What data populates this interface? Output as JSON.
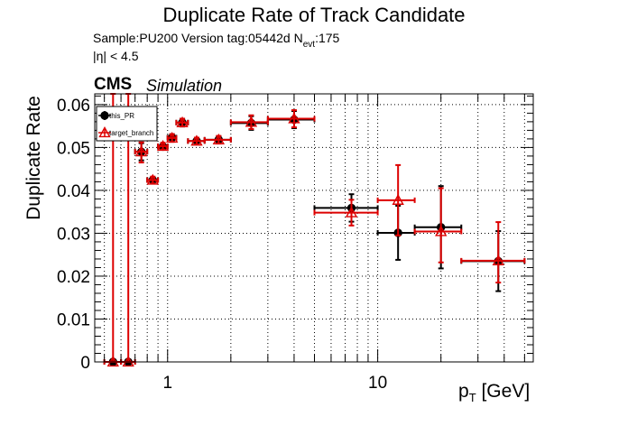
{
  "chart_data": {
    "type": "scatter",
    "title": "Duplicate Rate of Track Candidate",
    "subtitle_sample": "Sample:PU200   Version tag:05442d  N",
    "subtitle_nevt_sub": "evt",
    "subtitle_nevt_value": ":175",
    "eta_label": "|η| < 4.5",
    "cms_label": "CMS",
    "simulation_label": "Simulation",
    "ylabel": "Duplicate Rate",
    "xlabel_main": "p",
    "xlabel_sub": "T",
    "xlabel_unit": " [GeV]",
    "x_scale": "log",
    "xlim": [
      0.45,
      55
    ],
    "ylim": [
      0,
      0.0625
    ],
    "grid": true,
    "legend_position": "top-left",
    "x_tick_labels": [
      {
        "value": 1,
        "label": "1"
      },
      {
        "value": 10,
        "label": "10"
      }
    ],
    "y_tick_labels": [
      {
        "value": 0,
        "label": "0"
      },
      {
        "value": 0.01,
        "label": "0.01"
      },
      {
        "value": 0.02,
        "label": "0.02"
      },
      {
        "value": 0.03,
        "label": "0.03"
      },
      {
        "value": 0.04,
        "label": "0.04"
      },
      {
        "value": 0.05,
        "label": "0.05"
      },
      {
        "value": 0.06,
        "label": "0.06"
      }
    ],
    "series": [
      {
        "name": "this_PR",
        "color": "#000000",
        "marker": "circle",
        "points": [
          {
            "x": 0.55,
            "xlo": 0.5,
            "xhi": 0.6,
            "y": 0.0,
            "ylo": 0.0,
            "yhi": 0.0
          },
          {
            "x": 0.65,
            "xlo": 0.6,
            "xhi": 0.7,
            "y": 0.0,
            "ylo": 0.0,
            "yhi": 0.0
          },
          {
            "x": 0.75,
            "xlo": 0.7,
            "xhi": 0.8,
            "y": 0.049,
            "ylo": 0.047,
            "yhi": 0.051
          },
          {
            "x": 0.85,
            "xlo": 0.8,
            "xhi": 0.9,
            "y": 0.0424,
            "ylo": 0.0418,
            "yhi": 0.043
          },
          {
            "x": 0.95,
            "xlo": 0.9,
            "xhi": 1.0,
            "y": 0.0502,
            "ylo": 0.0495,
            "yhi": 0.0509
          },
          {
            "x": 1.05,
            "xlo": 1.0,
            "xhi": 1.1,
            "y": 0.0523,
            "ylo": 0.0515,
            "yhi": 0.0531
          },
          {
            "x": 1.175,
            "xlo": 1.1,
            "xhi": 1.25,
            "y": 0.0558,
            "ylo": 0.0549,
            "yhi": 0.0567
          },
          {
            "x": 1.375,
            "xlo": 1.25,
            "xhi": 1.5,
            "y": 0.0515,
            "ylo": 0.0508,
            "yhi": 0.0522
          },
          {
            "x": 1.75,
            "xlo": 1.5,
            "xhi": 2.0,
            "y": 0.0518,
            "ylo": 0.051,
            "yhi": 0.0526
          },
          {
            "x": 2.5,
            "xlo": 2.0,
            "xhi": 3.0,
            "y": 0.0557,
            "ylo": 0.0541,
            "yhi": 0.0573
          },
          {
            "x": 4.0,
            "xlo": 3.0,
            "xhi": 5.0,
            "y": 0.0565,
            "ylo": 0.0545,
            "yhi": 0.0585
          },
          {
            "x": 7.5,
            "xlo": 5.0,
            "xhi": 10.0,
            "y": 0.0359,
            "ylo": 0.0327,
            "yhi": 0.0391
          },
          {
            "x": 12.5,
            "xlo": 10.0,
            "xhi": 15.0,
            "y": 0.0301,
            "ylo": 0.0238,
            "yhi": 0.0364
          },
          {
            "x": 20.0,
            "xlo": 15.0,
            "xhi": 25.0,
            "y": 0.0314,
            "ylo": 0.0218,
            "yhi": 0.041
          },
          {
            "x": 37.5,
            "xlo": 25.0,
            "xhi": 50.0,
            "y": 0.0235,
            "ylo": 0.0165,
            "yhi": 0.0305
          }
        ]
      },
      {
        "name": "target_branch",
        "color": "#dd0000",
        "marker": "open-triangle",
        "points": [
          {
            "x": 0.55,
            "xlo": 0.5,
            "xhi": 0.6,
            "y": 0.0,
            "ylo": 0.0,
            "yhi": 0.0625
          },
          {
            "x": 0.65,
            "xlo": 0.6,
            "xhi": 0.7,
            "y": 0.0,
            "ylo": 0.0,
            "yhi": 0.0625
          },
          {
            "x": 0.75,
            "xlo": 0.7,
            "xhi": 0.8,
            "y": 0.049,
            "ylo": 0.0465,
            "yhi": 0.0512
          },
          {
            "x": 0.85,
            "xlo": 0.8,
            "xhi": 0.9,
            "y": 0.0424,
            "ylo": 0.0416,
            "yhi": 0.0432
          },
          {
            "x": 0.95,
            "xlo": 0.9,
            "xhi": 1.0,
            "y": 0.0503,
            "ylo": 0.0495,
            "yhi": 0.0511
          },
          {
            "x": 1.05,
            "xlo": 1.0,
            "xhi": 1.1,
            "y": 0.0522,
            "ylo": 0.0513,
            "yhi": 0.0531
          },
          {
            "x": 1.175,
            "xlo": 1.1,
            "xhi": 1.25,
            "y": 0.0558,
            "ylo": 0.0549,
            "yhi": 0.0567
          },
          {
            "x": 1.375,
            "xlo": 1.25,
            "xhi": 1.5,
            "y": 0.0515,
            "ylo": 0.0507,
            "yhi": 0.0523
          },
          {
            "x": 1.75,
            "xlo": 1.5,
            "xhi": 2.0,
            "y": 0.0518,
            "ylo": 0.0509,
            "yhi": 0.0527
          },
          {
            "x": 2.5,
            "xlo": 2.0,
            "xhi": 3.0,
            "y": 0.0559,
            "ylo": 0.0543,
            "yhi": 0.0575
          },
          {
            "x": 4.0,
            "xlo": 3.0,
            "xhi": 5.0,
            "y": 0.0567,
            "ylo": 0.0547,
            "yhi": 0.0587
          },
          {
            "x": 7.5,
            "xlo": 5.0,
            "xhi": 10.0,
            "y": 0.0348,
            "ylo": 0.0318,
            "yhi": 0.0378
          },
          {
            "x": 12.5,
            "xlo": 10.0,
            "xhi": 15.0,
            "y": 0.0377,
            "ylo": 0.0295,
            "yhi": 0.0459
          },
          {
            "x": 20.0,
            "xlo": 15.0,
            "xhi": 25.0,
            "y": 0.0304,
            "ylo": 0.0232,
            "yhi": 0.0405
          },
          {
            "x": 37.5,
            "xlo": 25.0,
            "xhi": 50.0,
            "y": 0.0236,
            "ylo": 0.0185,
            "yhi": 0.0326
          }
        ]
      }
    ]
  }
}
